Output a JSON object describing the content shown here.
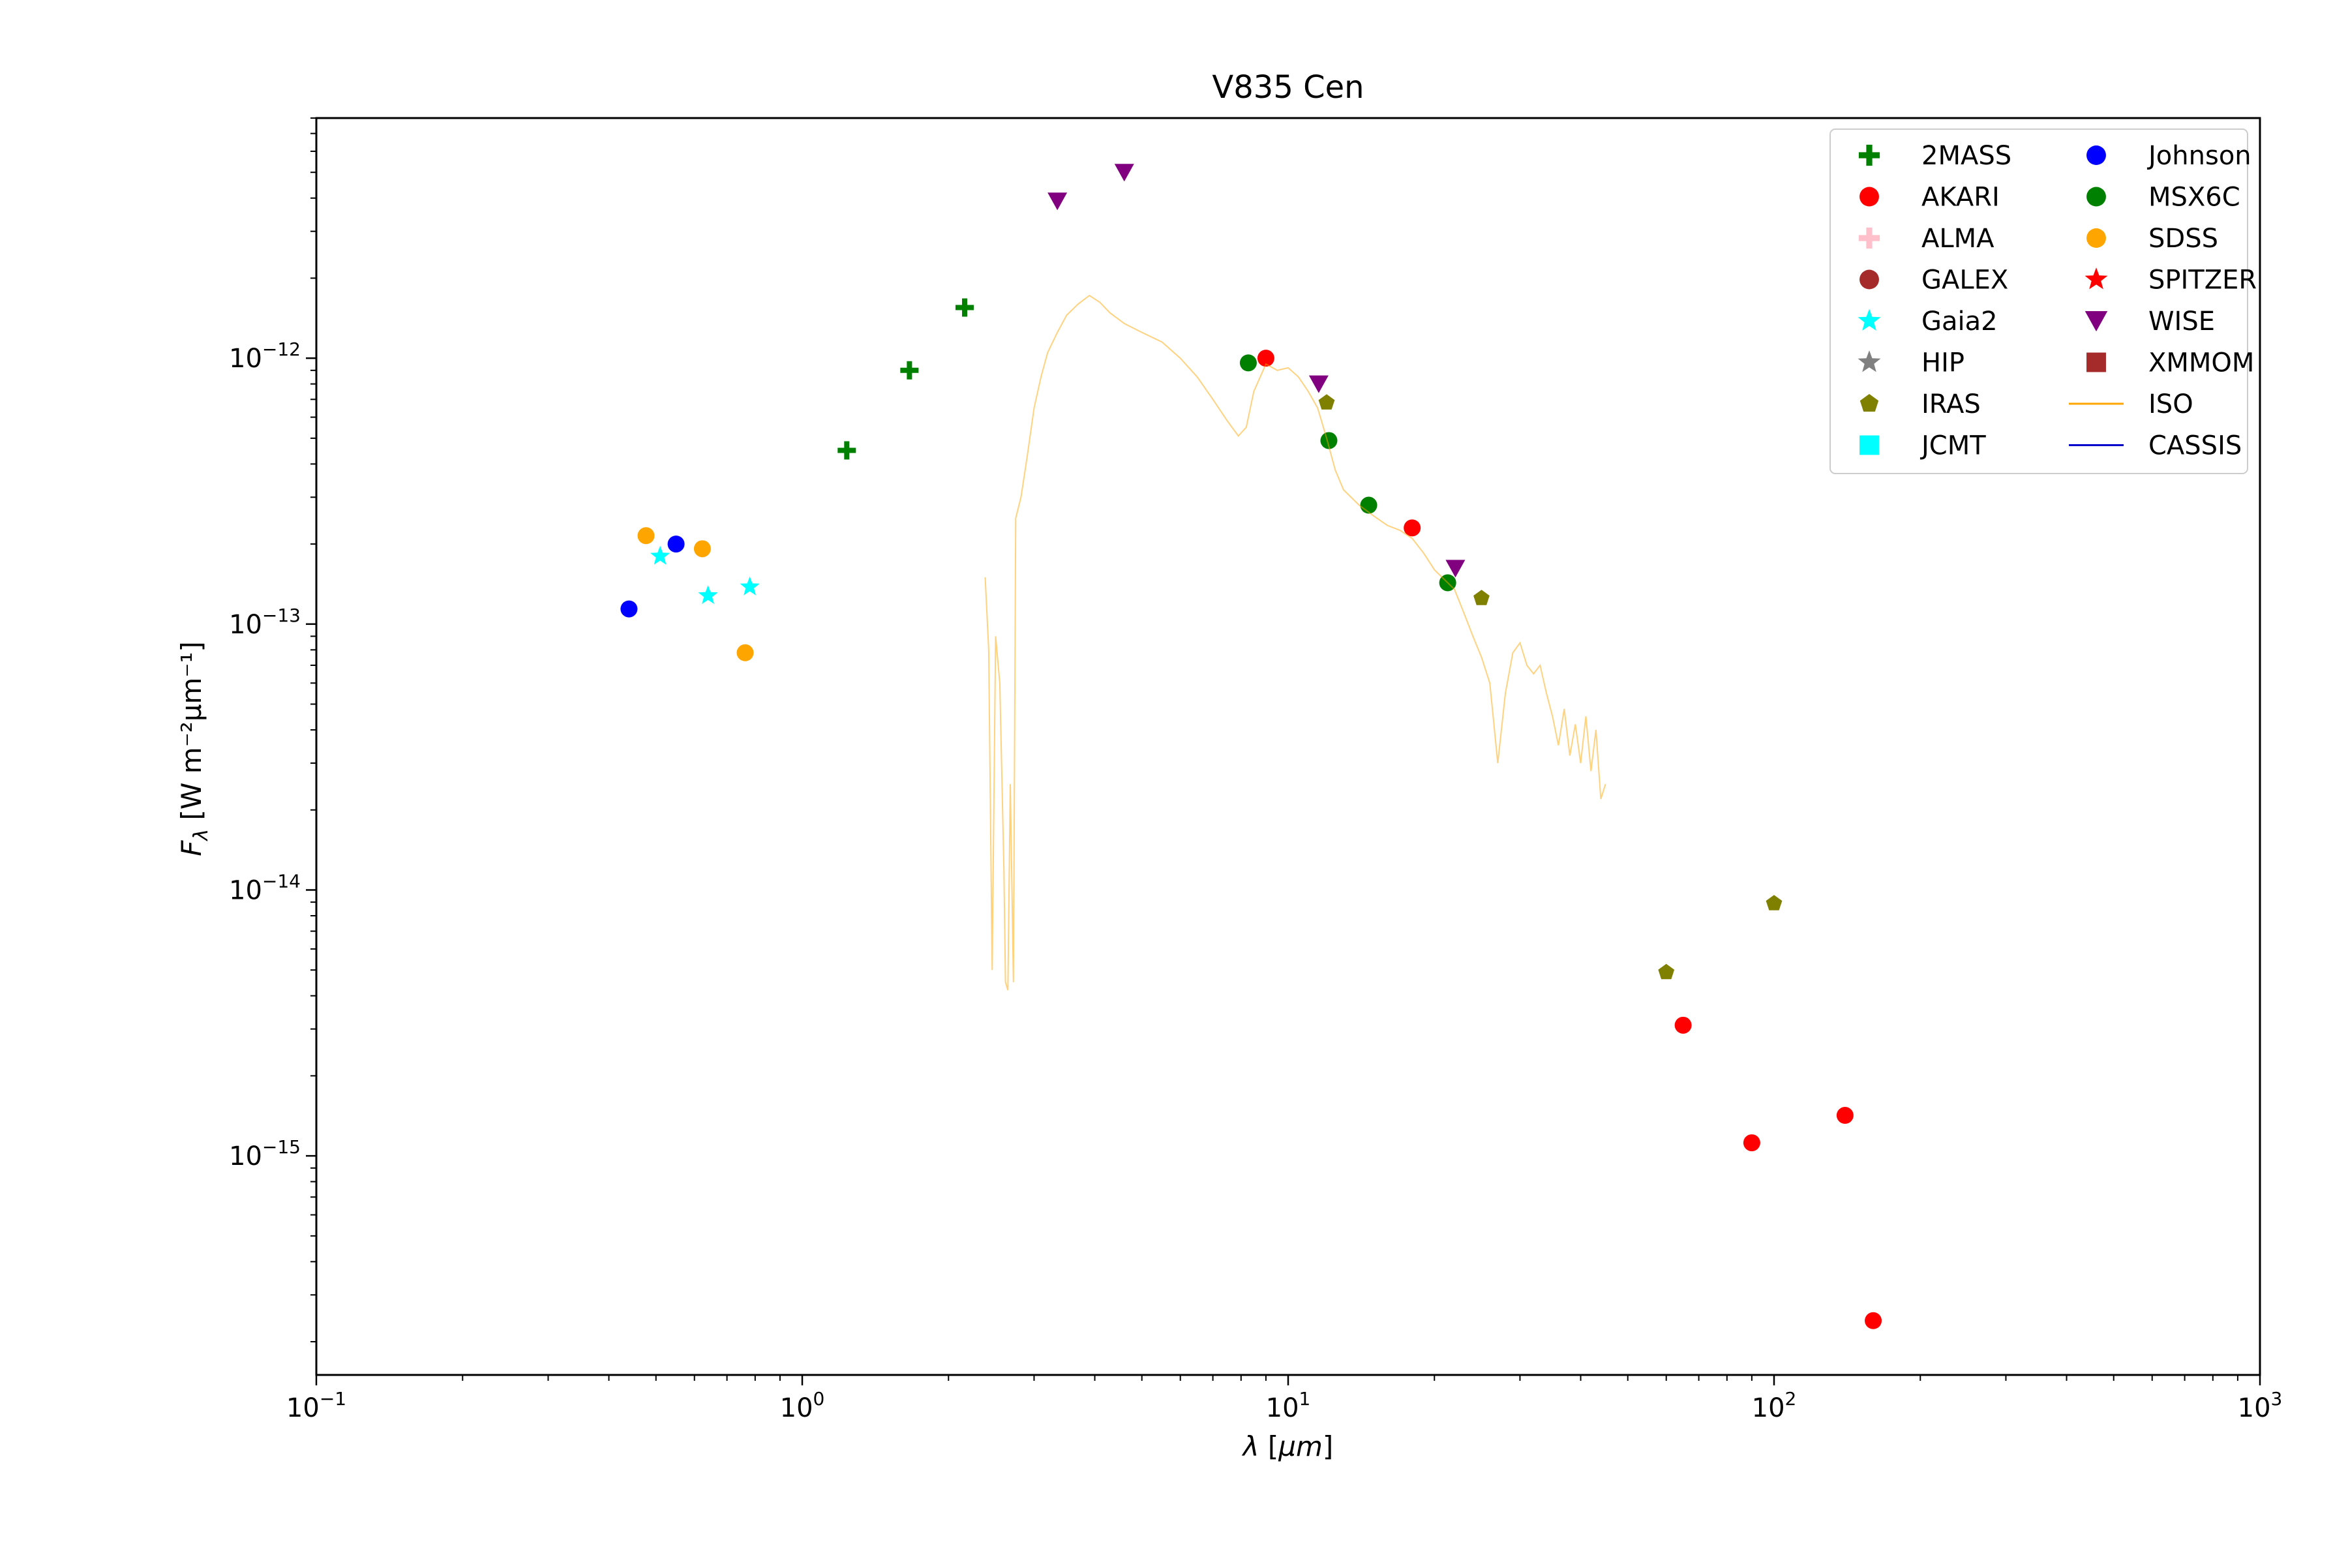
{
  "chart_data": {
    "type": "scatter",
    "title": "V835 Cen",
    "xlabel": "λ [μm]",
    "ylabel": "Fλ [W m⁻²μm⁻¹]",
    "xscale": "log",
    "yscale": "log",
    "xlim": [
      0.1,
      1000
    ],
    "ylim": [
      1.5e-16,
      8e-12
    ],
    "grid": false,
    "legend_position": "top-right",
    "x_tick_labels": [
      {
        "value": 0.1,
        "base": "10",
        "exp": "−1"
      },
      {
        "value": 1,
        "base": "10",
        "exp": "0"
      },
      {
        "value": 10,
        "base": "10",
        "exp": "1"
      },
      {
        "value": 100,
        "base": "10",
        "exp": "2"
      },
      {
        "value": 1000,
        "base": "10",
        "exp": "3"
      }
    ],
    "y_tick_labels": [
      {
        "value": 1e-15,
        "base": "10",
        "exp": "−15"
      },
      {
        "value": 1e-14,
        "base": "10",
        "exp": "−14"
      },
      {
        "value": 1e-13,
        "base": "10",
        "exp": "−13"
      },
      {
        "value": 1e-12,
        "base": "10",
        "exp": "−12"
      }
    ],
    "series": [
      {
        "name": "2MASS",
        "marker": "plus",
        "color": "#008000",
        "points": [
          [
            1.235,
            4.5e-13
          ],
          [
            1.662,
            9e-13
          ],
          [
            2.159,
            1.55e-12
          ]
        ]
      },
      {
        "name": "AKARI",
        "marker": "circle",
        "color": "#ff0000",
        "points": [
          [
            9.0,
            1e-12
          ],
          [
            18.0,
            2.3e-13
          ],
          [
            65.0,
            3.1e-15
          ],
          [
            90.0,
            1.12e-15
          ],
          [
            140.0,
            1.42e-15
          ],
          [
            160.0,
            2.4e-16
          ]
        ]
      },
      {
        "name": "ALMA",
        "marker": "plus",
        "color": "#ffc0cb",
        "points": []
      },
      {
        "name": "GALEX",
        "marker": "circle",
        "color": "#a52a2a",
        "points": []
      },
      {
        "name": "Gaia2",
        "marker": "star",
        "color": "#00ffff",
        "points": [
          [
            0.51,
            1.8e-13
          ],
          [
            0.64,
            1.28e-13
          ],
          [
            0.78,
            1.38e-13
          ]
        ]
      },
      {
        "name": "HIP",
        "marker": "star",
        "color": "#808080",
        "points": []
      },
      {
        "name": "IRAS",
        "marker": "pentagon",
        "color": "#808000",
        "points": [
          [
            12.0,
            6.8e-13
          ],
          [
            25.0,
            1.25e-13
          ],
          [
            60.0,
            4.9e-15
          ],
          [
            100.0,
            8.9e-15
          ]
        ]
      },
      {
        "name": "JCMT",
        "marker": "square",
        "color": "#00ffff",
        "points": []
      },
      {
        "name": "Johnson",
        "marker": "circle",
        "color": "#0000ff",
        "points": [
          [
            0.44,
            1.14e-13
          ],
          [
            0.55,
            2e-13
          ]
        ]
      },
      {
        "name": "MSX6C",
        "marker": "circle",
        "color": "#008000",
        "points": [
          [
            8.28,
            9.6e-13
          ],
          [
            12.13,
            4.9e-13
          ],
          [
            14.65,
            2.8e-13
          ],
          [
            21.3,
            1.43e-13
          ]
        ]
      },
      {
        "name": "SDSS",
        "marker": "circle",
        "color": "#ffa500",
        "points": [
          [
            0.477,
            2.15e-13
          ],
          [
            0.623,
            1.92e-13
          ],
          [
            0.763,
            7.8e-14
          ]
        ]
      },
      {
        "name": "SPITZER",
        "marker": "star",
        "color": "#ff0000",
        "points": []
      },
      {
        "name": "WISE",
        "marker": "triangle-down",
        "color": "#800080",
        "points": [
          [
            3.35,
            3.9e-12
          ],
          [
            4.6,
            5e-12
          ],
          [
            11.56,
            8e-13
          ],
          [
            22.09,
            1.62e-13
          ]
        ]
      },
      {
        "name": "XMMOM",
        "marker": "square",
        "color": "#a52a2a",
        "points": []
      },
      {
        "name": "ISO",
        "marker": "line",
        "color": "#ffa500",
        "points": [
          [
            2.38,
            1.5e-13
          ],
          [
            2.42,
            8e-14
          ],
          [
            2.46,
            5e-15
          ],
          [
            2.5,
            9e-14
          ],
          [
            2.55,
            6e-14
          ],
          [
            2.6,
            1.2e-14
          ],
          [
            2.62,
            4.5e-15
          ],
          [
            2.65,
            4.2e-15
          ],
          [
            2.68,
            2.5e-14
          ],
          [
            2.72,
            4.5e-15
          ],
          [
            2.75,
            2.5e-13
          ],
          [
            2.82,
            3e-13
          ],
          [
            2.9,
            4.2e-13
          ],
          [
            3.0,
            6.5e-13
          ],
          [
            3.1,
            8.5e-13
          ],
          [
            3.2,
            1.05e-12
          ],
          [
            3.35,
            1.25e-12
          ],
          [
            3.5,
            1.45e-12
          ],
          [
            3.7,
            1.6e-12
          ],
          [
            3.9,
            1.72e-12
          ],
          [
            4.1,
            1.62e-12
          ],
          [
            4.3,
            1.48e-12
          ],
          [
            4.6,
            1.35e-12
          ],
          [
            5.0,
            1.25e-12
          ],
          [
            5.5,
            1.15e-12
          ],
          [
            6.0,
            1e-12
          ],
          [
            6.5,
            8.5e-13
          ],
          [
            7.0,
            7e-13
          ],
          [
            7.5,
            5.8e-13
          ],
          [
            7.9,
            5.1e-13
          ],
          [
            8.2,
            5.5e-13
          ],
          [
            8.5,
            7.5e-13
          ],
          [
            9.0,
            9.5e-13
          ],
          [
            9.5,
            9e-13
          ],
          [
            10.0,
            9.2e-13
          ],
          [
            10.5,
            8.5e-13
          ],
          [
            11.0,
            7.5e-13
          ],
          [
            11.5,
            6.5e-13
          ],
          [
            12.0,
            5e-13
          ],
          [
            12.5,
            3.8e-13
          ],
          [
            13.0,
            3.2e-13
          ],
          [
            14.0,
            2.8e-13
          ],
          [
            15.0,
            2.55e-13
          ],
          [
            16.0,
            2.35e-13
          ],
          [
            17.0,
            2.25e-13
          ],
          [
            18.0,
            2.1e-13
          ],
          [
            19.0,
            1.85e-13
          ],
          [
            20.0,
            1.6e-13
          ],
          [
            22.0,
            1.35e-13
          ],
          [
            23.0,
            1.1e-13
          ],
          [
            24.0,
            9e-14
          ],
          [
            25.0,
            7.5e-14
          ],
          [
            26.0,
            6e-14
          ],
          [
            27.0,
            3e-14
          ],
          [
            28.0,
            5.5e-14
          ],
          [
            29.0,
            7.8e-14
          ],
          [
            30.0,
            8.5e-14
          ],
          [
            31.0,
            7e-14
          ],
          [
            32.0,
            6.5e-14
          ],
          [
            33.0,
            7e-14
          ],
          [
            34.0,
            5.5e-14
          ],
          [
            35.0,
            4.5e-14
          ],
          [
            36.0,
            3.5e-14
          ],
          [
            37.0,
            4.8e-14
          ],
          [
            38.0,
            3.2e-14
          ],
          [
            39.0,
            4.2e-14
          ],
          [
            40.0,
            3e-14
          ],
          [
            41.0,
            4.5e-14
          ],
          [
            42.0,
            2.8e-14
          ],
          [
            43.0,
            4e-14
          ],
          [
            44.0,
            2.2e-14
          ],
          [
            45.0,
            2.5e-14
          ]
        ]
      },
      {
        "name": "CASSIS",
        "marker": "line",
        "color": "#0000cd",
        "points": []
      }
    ]
  }
}
